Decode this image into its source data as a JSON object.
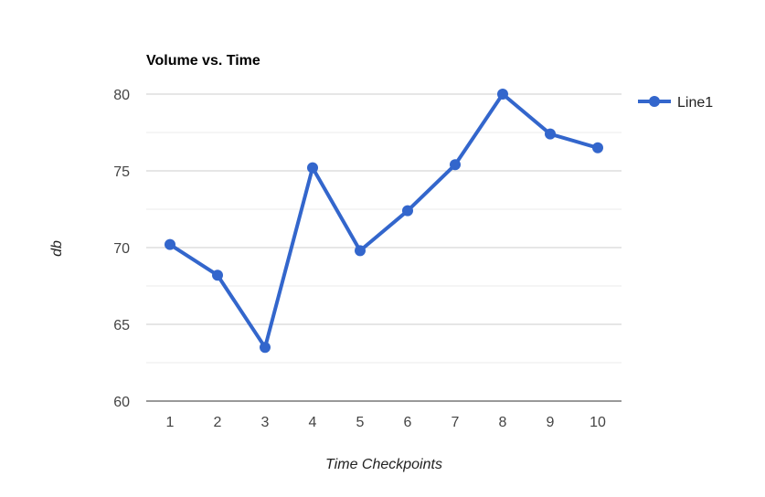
{
  "chart_data": {
    "type": "line",
    "title": "Volume vs. Time",
    "xlabel": "Time Checkpoints",
    "ylabel": "db",
    "categories": [
      "1",
      "2",
      "3",
      "4",
      "5",
      "6",
      "7",
      "8",
      "9",
      "10"
    ],
    "y_ticks": [
      "60",
      "65",
      "70",
      "75",
      "80"
    ],
    "ylim": [
      60,
      80
    ],
    "grid": true,
    "legend_position": "right",
    "series": [
      {
        "name": "Line1",
        "color": "#3366cc",
        "values": [
          70.2,
          68.2,
          63.5,
          75.2,
          69.8,
          72.4,
          75.4,
          80.0,
          77.4,
          76.5
        ]
      }
    ]
  }
}
